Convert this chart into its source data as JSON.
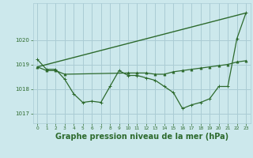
{
  "background_color": "#cce8ec",
  "grid_color": "#aaccd4",
  "line_color": "#2d6a2d",
  "xlabel": "Graphe pression niveau de la mer (hPa)",
  "xlabel_fontsize": 7,
  "xlim": [
    -0.5,
    23.5
  ],
  "ylim": [
    1016.6,
    1021.5
  ],
  "yticks": [
    1017,
    1018,
    1019,
    1020
  ],
  "xticks": [
    0,
    1,
    2,
    3,
    4,
    5,
    6,
    7,
    8,
    9,
    10,
    11,
    12,
    13,
    14,
    15,
    16,
    17,
    18,
    19,
    20,
    21,
    22,
    23
  ],
  "series1_x": [
    0,
    1,
    2,
    3,
    4,
    5,
    6,
    7,
    8,
    9,
    10,
    11,
    12,
    13,
    14,
    15,
    16,
    17,
    18,
    19,
    20,
    21,
    22,
    23
  ],
  "series1_y": [
    1019.2,
    1018.8,
    1018.8,
    1018.4,
    1017.8,
    1017.45,
    1017.5,
    1017.45,
    1018.1,
    1018.75,
    1018.55,
    1018.55,
    1018.45,
    1018.35,
    1018.1,
    1017.85,
    1017.2,
    1017.35,
    1017.45,
    1017.6,
    1018.1,
    1018.1,
    1020.05,
    1021.1
  ],
  "series2_x": [
    0,
    1,
    2,
    3,
    10,
    11,
    12,
    13,
    14,
    15,
    16,
    17,
    18,
    19,
    20,
    21,
    22,
    23
  ],
  "series2_y": [
    1018.9,
    1018.75,
    1018.75,
    1018.6,
    1018.65,
    1018.65,
    1018.65,
    1018.6,
    1018.6,
    1018.7,
    1018.75,
    1018.8,
    1018.85,
    1018.9,
    1018.95,
    1019.0,
    1019.1,
    1019.15
  ],
  "series3_x": [
    0,
    23
  ],
  "series3_y": [
    1018.9,
    1021.1
  ]
}
